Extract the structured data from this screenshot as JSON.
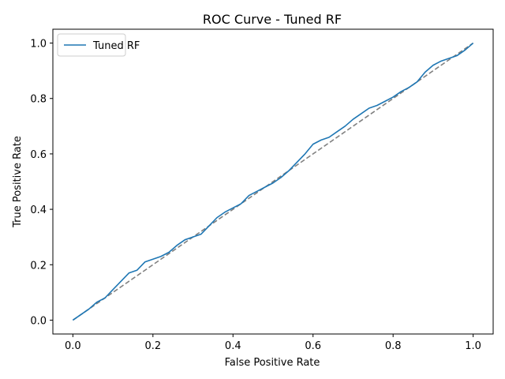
{
  "chart_data": {
    "type": "line",
    "title": "ROC Curve - Tuned RF",
    "xlabel": "False Positive Rate",
    "ylabel": "True Positive Rate",
    "xlim": [
      -0.05,
      1.05
    ],
    "ylim": [
      -0.05,
      1.05
    ],
    "x_ticks": [
      0.0,
      0.2,
      0.4,
      0.6,
      0.8,
      1.0
    ],
    "y_ticks": [
      0.0,
      0.2,
      0.4,
      0.6,
      0.8,
      1.0
    ],
    "x_tick_labels": [
      "0.0",
      "0.2",
      "0.4",
      "0.6",
      "0.8",
      "1.0"
    ],
    "y_tick_labels": [
      "0.0",
      "0.2",
      "0.4",
      "0.6",
      "0.8",
      "1.0"
    ],
    "grid": false,
    "legend_position": "upper-left",
    "colors": {
      "series": "#1f77b4",
      "reference": "#808080"
    },
    "series": [
      {
        "name": "Tuned RF",
        "line_style": "solid",
        "x": [
          0.0,
          0.01,
          0.02,
          0.04,
          0.06,
          0.08,
          0.1,
          0.12,
          0.14,
          0.16,
          0.18,
          0.2,
          0.22,
          0.24,
          0.26,
          0.28,
          0.3,
          0.32,
          0.34,
          0.36,
          0.38,
          0.4,
          0.42,
          0.44,
          0.46,
          0.48,
          0.5,
          0.52,
          0.54,
          0.56,
          0.58,
          0.6,
          0.62,
          0.64,
          0.66,
          0.68,
          0.7,
          0.72,
          0.74,
          0.76,
          0.78,
          0.8,
          0.82,
          0.84,
          0.86,
          0.88,
          0.9,
          0.92,
          0.94,
          0.96,
          0.98,
          1.0
        ],
        "y": [
          0.0,
          0.01,
          0.02,
          0.04,
          0.065,
          0.08,
          0.11,
          0.14,
          0.17,
          0.18,
          0.21,
          0.22,
          0.23,
          0.245,
          0.27,
          0.29,
          0.3,
          0.31,
          0.34,
          0.37,
          0.39,
          0.405,
          0.42,
          0.45,
          0.465,
          0.48,
          0.495,
          0.515,
          0.54,
          0.57,
          0.6,
          0.635,
          0.65,
          0.66,
          0.68,
          0.7,
          0.725,
          0.745,
          0.765,
          0.775,
          0.79,
          0.805,
          0.825,
          0.84,
          0.86,
          0.895,
          0.92,
          0.935,
          0.945,
          0.955,
          0.975,
          1.0
        ]
      }
    ],
    "reference_line": {
      "line_style": "dashed",
      "x": [
        0.0,
        1.0
      ],
      "y": [
        0.0,
        1.0
      ]
    }
  }
}
